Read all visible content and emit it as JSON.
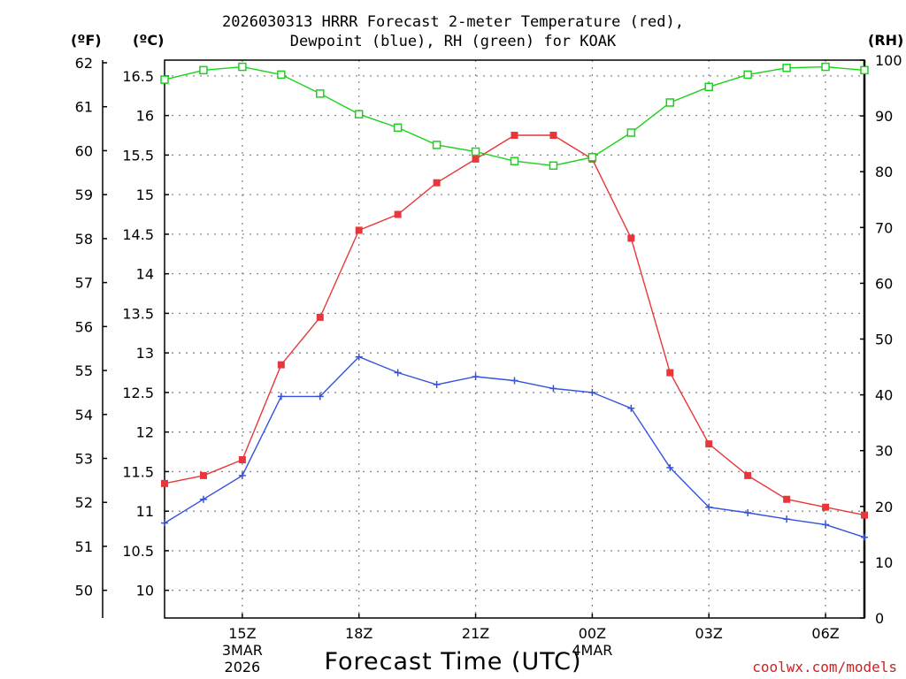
{
  "header": {
    "title_line1": "2026030313 HRRR Forecast 2-meter Temperature (red),",
    "title_line2": "Dewpoint (blue), RH (green) for KOAK"
  },
  "axes": {
    "unit_f": "(ºF)",
    "unit_c": "(ºC)",
    "unit_rh": "(RH)"
  },
  "footer": {
    "xlabel": "Forecast Time (UTC)",
    "credit": "coolwx.com/models"
  },
  "colors": {
    "temperature": "#e8373a",
    "dewpoint": "#3452e0",
    "rh": "#18d418",
    "grid": "#888888"
  },
  "chart_data": {
    "type": "line",
    "title": "2026030313 HRRR Forecast 2-meter Temperature (red), Dewpoint (blue), RH (green) for KOAK",
    "xlabel": "Forecast Time (UTC)",
    "x": [
      13,
      14,
      15,
      16,
      17,
      18,
      19,
      20,
      21,
      22,
      23,
      24,
      25,
      26,
      27,
      28,
      29,
      30,
      31
    ],
    "xlim": [
      13,
      31
    ],
    "x_ticks": [
      {
        "x": 15,
        "lines": [
          "15Z",
          "3MAR",
          "2026"
        ]
      },
      {
        "x": 18,
        "lines": [
          "18Z"
        ]
      },
      {
        "x": 21,
        "lines": [
          "21Z"
        ]
      },
      {
        "x": 24,
        "lines": [
          "00Z",
          "4MAR"
        ]
      },
      {
        "x": 27,
        "lines": [
          "03Z"
        ]
      },
      {
        "x": 30,
        "lines": [
          "06Z"
        ]
      }
    ],
    "y_left_c": {
      "label": "(ºC)",
      "lim": [
        9.65,
        16.7
      ],
      "ticks": [
        10,
        10.5,
        11,
        11.5,
        12,
        12.5,
        13,
        13.5,
        14,
        14.5,
        15,
        15.5,
        16,
        16.5
      ]
    },
    "y_left_f": {
      "label": "(ºF)",
      "ticks": [
        50,
        51,
        52,
        53,
        54,
        55,
        56,
        57,
        58,
        59,
        60,
        61,
        62
      ]
    },
    "y_right_rh": {
      "label": "(RH)",
      "lim": [
        0,
        100
      ],
      "ticks": [
        0,
        10,
        20,
        30,
        40,
        50,
        60,
        70,
        80,
        90,
        100
      ]
    },
    "series": [
      {
        "name": "Temperature",
        "axis": "C",
        "marker": "square",
        "values": [
          11.35,
          11.45,
          11.65,
          12.85,
          13.45,
          14.55,
          14.75,
          15.15,
          15.45,
          15.75,
          15.75,
          15.45,
          14.45,
          12.75,
          11.85,
          11.45,
          11.15,
          11.05,
          10.95
        ]
      },
      {
        "name": "Dewpoint",
        "axis": "C",
        "marker": "plus",
        "values": [
          10.85,
          11.15,
          11.45,
          12.45,
          12.45,
          12.95,
          12.75,
          12.6,
          12.7,
          12.65,
          12.55,
          12.5,
          12.3,
          11.55,
          11.05,
          10.98,
          10.9,
          10.83,
          10.67
        ]
      },
      {
        "name": "RH",
        "axis": "RH",
        "marker": "open-square",
        "values": [
          96.5,
          98.2,
          98.8,
          97.4,
          94.0,
          90.3,
          87.9,
          84.8,
          83.6,
          81.9,
          81.1,
          82.6,
          87.0,
          92.4,
          95.2,
          97.4,
          98.6,
          98.8,
          98.2
        ]
      }
    ]
  }
}
